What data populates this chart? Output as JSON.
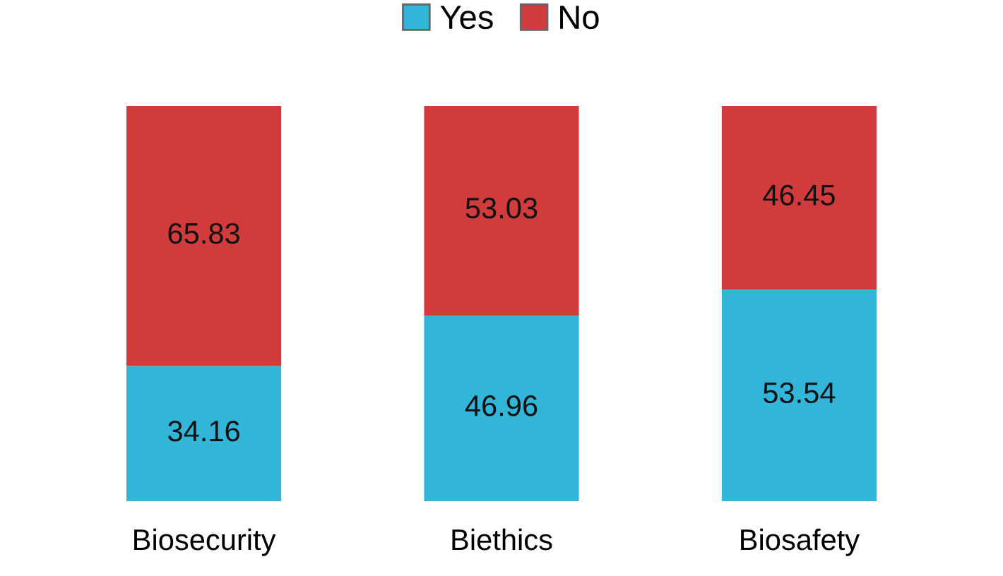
{
  "chart_data": {
    "type": "bar",
    "stacked": true,
    "categories": [
      "Biosecurity",
      "Biethics",
      "Biosafety"
    ],
    "series": [
      {
        "name": "Yes",
        "color": "#31b5d8",
        "values": [
          34.16,
          46.96,
          53.54
        ]
      },
      {
        "name": "No",
        "color": "#d13b3b",
        "values": [
          65.83,
          53.03,
          46.45
        ]
      }
    ],
    "data_labels": true,
    "legend": "top",
    "grid": false
  }
}
